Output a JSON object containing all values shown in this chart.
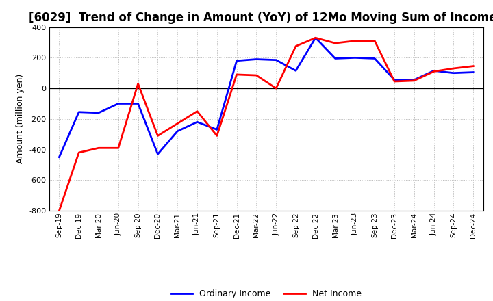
{
  "title": "[6029]  Trend of Change in Amount (YoY) of 12Mo Moving Sum of Incomes",
  "ylabel": "Amount (million yen)",
  "x_labels": [
    "Sep-19",
    "Dec-19",
    "Mar-20",
    "Jun-20",
    "Sep-20",
    "Dec-20",
    "Mar-21",
    "Jun-21",
    "Sep-21",
    "Dec-21",
    "Mar-22",
    "Jun-22",
    "Sep-22",
    "Dec-22",
    "Mar-23",
    "Jun-23",
    "Sep-23",
    "Dec-23",
    "Mar-24",
    "Jun-24",
    "Sep-24",
    "Dec-24"
  ],
  "ordinary_income": [
    -450,
    -155,
    -160,
    -100,
    -100,
    -430,
    -280,
    -220,
    -270,
    180,
    190,
    185,
    115,
    330,
    195,
    200,
    195,
    55,
    55,
    115,
    100,
    105
  ],
  "net_income": [
    -800,
    -420,
    -390,
    -390,
    30,
    -310,
    -230,
    -150,
    -310,
    90,
    85,
    0,
    275,
    330,
    295,
    310,
    310,
    45,
    50,
    110,
    130,
    145
  ],
  "ordinary_color": "#0000FF",
  "net_color": "#FF0000",
  "ylim": [
    -800,
    400
  ],
  "yticks": [
    -800,
    -600,
    -400,
    -200,
    0,
    200,
    400
  ],
  "legend_labels": [
    "Ordinary Income",
    "Net Income"
  ],
  "background_color": "#FFFFFF",
  "grid_color": "#AAAAAA",
  "line_width": 2.0,
  "title_fontsize": 12,
  "ylabel_fontsize": 9,
  "tick_fontsize": 8,
  "legend_fontsize": 9
}
